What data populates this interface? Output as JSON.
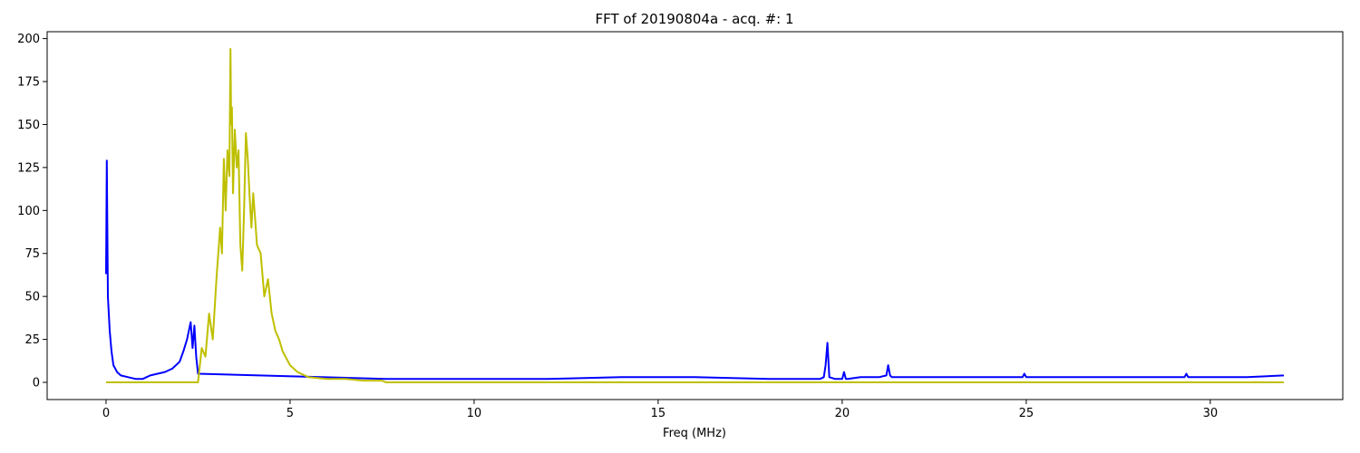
{
  "chart_data": {
    "type": "line",
    "title": "FFT of 20190804a - acq. #: 1",
    "xlabel": "Freq (MHz)",
    "ylabel": "",
    "xlim": [
      -1.6,
      33.6
    ],
    "ylim": [
      -10,
      204
    ],
    "xticks": [
      0,
      5,
      10,
      15,
      20,
      25,
      30
    ],
    "yticks": [
      0,
      25,
      50,
      75,
      100,
      125,
      150,
      175,
      200
    ],
    "grid": false,
    "legend": false,
    "series": [
      {
        "color": "#0000ff",
        "x": [
          0.0,
          0.02,
          0.05,
          0.1,
          0.15,
          0.2,
          0.3,
          0.4,
          0.6,
          0.8,
          1.0,
          1.2,
          1.4,
          1.6,
          1.8,
          2.0,
          2.1,
          2.2,
          2.3,
          2.35,
          2.4,
          2.45,
          2.5,
          7.6,
          8.5,
          10,
          12,
          14,
          16,
          18,
          19.4,
          19.5,
          19.55,
          19.6,
          19.65,
          19.8,
          20.0,
          20.05,
          20.1,
          20.15,
          20.5,
          21.0,
          21.2,
          21.25,
          21.3,
          21.35,
          21.6,
          22.5,
          24,
          24.9,
          24.95,
          25.0,
          26,
          28,
          29.3,
          29.35,
          29.4,
          30.5,
          31,
          32.0
        ],
        "y": [
          63,
          129,
          50,
          30,
          18,
          10,
          6,
          4,
          3,
          2,
          2,
          4,
          5,
          6,
          8,
          12,
          18,
          25,
          35,
          20,
          33,
          15,
          5,
          2,
          2,
          2,
          2,
          3,
          3,
          2,
          2,
          3,
          10,
          23,
          3,
          2,
          2,
          6,
          2,
          2,
          3,
          3,
          4,
          10,
          4,
          3,
          3,
          3,
          3,
          3,
          5,
          3,
          3,
          3,
          3,
          5,
          3,
          3,
          3,
          4
        ]
      },
      {
        "color": "#bfbf00",
        "x": [
          0.0,
          2.5,
          2.6,
          2.7,
          2.8,
          2.9,
          3.0,
          3.1,
          3.15,
          3.2,
          3.25,
          3.3,
          3.35,
          3.38,
          3.4,
          3.42,
          3.45,
          3.5,
          3.55,
          3.6,
          3.65,
          3.7,
          3.75,
          3.8,
          3.85,
          3.9,
          3.95,
          4.0,
          4.05,
          4.1,
          4.2,
          4.3,
          4.4,
          4.5,
          4.6,
          4.7,
          4.8,
          5.0,
          5.2,
          5.5,
          6.0,
          6.5,
          7.0,
          7.5,
          7.6,
          32.0
        ],
        "y": [
          0,
          0,
          20,
          15,
          40,
          25,
          60,
          90,
          75,
          130,
          100,
          135,
          120,
          194,
          150,
          160,
          110,
          147,
          125,
          135,
          80,
          65,
          100,
          145,
          130,
          108,
          90,
          110,
          95,
          80,
          75,
          50,
          60,
          40,
          30,
          25,
          18,
          10,
          6,
          3,
          2,
          2,
          1,
          1,
          0,
          0
        ]
      }
    ]
  }
}
